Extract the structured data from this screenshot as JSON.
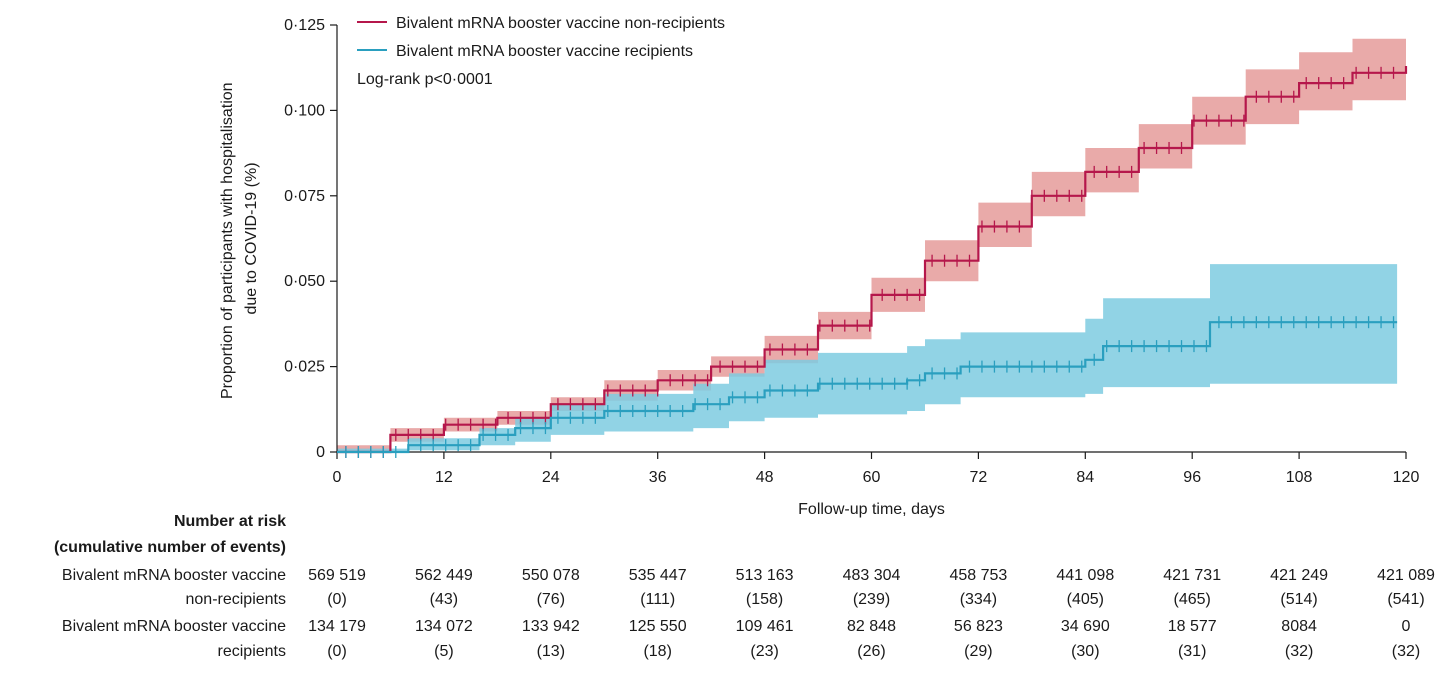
{
  "chart_data": {
    "type": "line",
    "subtype": "kaplan-meier-cumulative-incidence",
    "title": "",
    "xlabel": "Follow-up time, days",
    "ylabel_lines": [
      "Proportion of participants with hospitalisation",
      "due to COVID-19 (%)"
    ],
    "xlim": [
      0,
      120
    ],
    "ylim": [
      0,
      0.125
    ],
    "x_ticks": [
      0,
      12,
      24,
      36,
      48,
      60,
      72,
      84,
      96,
      108,
      120
    ],
    "y_ticks": [
      0,
      0.025,
      0.05,
      0.075,
      0.1,
      0.125
    ],
    "y_tick_labels": [
      "0",
      "0·025",
      "0·050",
      "0·075",
      "0·100",
      "0·125"
    ],
    "legend_position": "top-left",
    "annotation": "Log-rank p<0·0001",
    "series": [
      {
        "name": "Bivalent mRNA booster vaccine non-recipients",
        "color": "#b5174b",
        "band_color": "#e28e8c",
        "x": [
          0,
          6,
          12,
          18,
          24,
          30,
          36,
          42,
          48,
          54,
          60,
          66,
          72,
          78,
          84,
          90,
          96,
          102,
          108,
          114,
          120
        ],
        "y": [
          0,
          0.005,
          0.008,
          0.01,
          0.014,
          0.018,
          0.021,
          0.025,
          0.03,
          0.037,
          0.046,
          0.056,
          0.066,
          0.075,
          0.082,
          0.089,
          0.097,
          0.104,
          0.108,
          0.111,
          0.113
        ],
        "lower": [
          0,
          0.003,
          0.006,
          0.008,
          0.012,
          0.015,
          0.018,
          0.022,
          0.026,
          0.033,
          0.041,
          0.05,
          0.06,
          0.069,
          0.076,
          0.083,
          0.09,
          0.096,
          0.1,
          0.103,
          0.104
        ],
        "upper": [
          0.002,
          0.007,
          0.01,
          0.012,
          0.016,
          0.021,
          0.024,
          0.028,
          0.034,
          0.041,
          0.051,
          0.062,
          0.073,
          0.082,
          0.089,
          0.096,
          0.104,
          0.112,
          0.117,
          0.121,
          0.122
        ]
      },
      {
        "name": "Bivalent mRNA booster vaccine recipients",
        "color": "#2a9fbf",
        "band_color": "#7ecbe0",
        "x": [
          0,
          8,
          16,
          20,
          24,
          30,
          40,
          44,
          48,
          54,
          64,
          66,
          70,
          84,
          86,
          98,
          119
        ],
        "y": [
          0,
          0.002,
          0.005,
          0.007,
          0.01,
          0.012,
          0.014,
          0.016,
          0.018,
          0.02,
          0.021,
          0.023,
          0.025,
          0.027,
          0.031,
          0.038,
          0.038
        ],
        "lower": [
          0,
          0.0005,
          0.002,
          0.003,
          0.005,
          0.006,
          0.007,
          0.009,
          0.01,
          0.011,
          0.012,
          0.014,
          0.016,
          0.017,
          0.019,
          0.02,
          0.02
        ],
        "upper": [
          0.001,
          0.004,
          0.007,
          0.01,
          0.014,
          0.017,
          0.02,
          0.023,
          0.027,
          0.029,
          0.031,
          0.033,
          0.035,
          0.039,
          0.045,
          0.055,
          0.055
        ]
      }
    ]
  },
  "risk_table": {
    "header_lines": [
      "Number at risk",
      "(cumulative number of events)"
    ],
    "rows": [
      {
        "label_lines": [
          "Bivalent mRNA booster vaccine",
          "non-recipients"
        ],
        "at_risk": [
          "569 519",
          "562 449",
          "550 078",
          "535 447",
          "513 163",
          "483 304",
          "458 753",
          "441 098",
          "421 731",
          "421 249",
          "421 089"
        ],
        "events": [
          "(0)",
          "(43)",
          "(76)",
          "(111)",
          "(158)",
          "(239)",
          "(334)",
          "(405)",
          "(465)",
          "(514)",
          "(541)"
        ]
      },
      {
        "label_lines": [
          "Bivalent mRNA booster vaccine",
          "recipients"
        ],
        "at_risk": [
          "134 179",
          "134 072",
          "133 942",
          "125 550",
          "109 461",
          "82 848",
          "56 823",
          "34 690",
          "18 577",
          "8084",
          "0"
        ],
        "events": [
          "(0)",
          "(5)",
          "(13)",
          "(18)",
          "(23)",
          "(26)",
          "(29)",
          "(30)",
          "(31)",
          "(32)",
          "(32)"
        ]
      }
    ]
  }
}
